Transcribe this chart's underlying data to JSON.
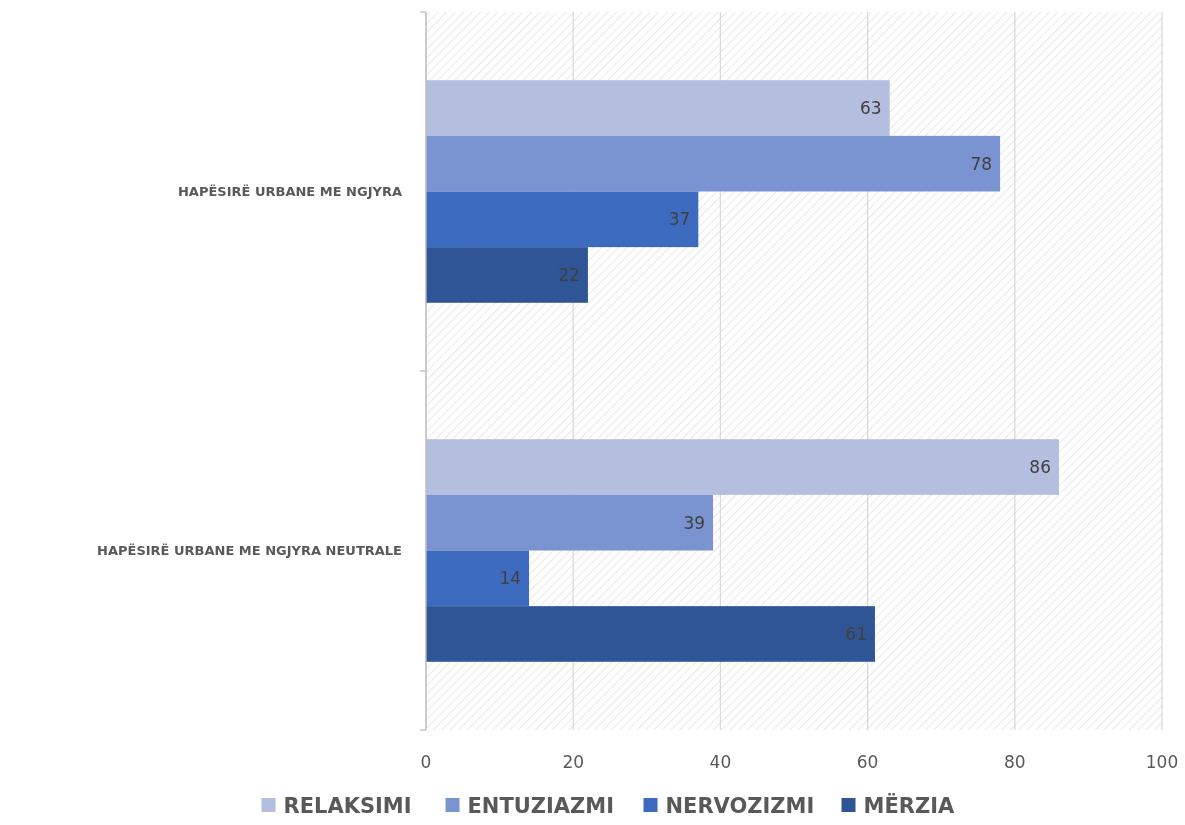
{
  "chart_data": {
    "type": "bar",
    "orientation": "horizontal",
    "categories": [
      "HAPËSIRË URBANE ME NGJYRA",
      "HAPËSIRË URBANE ME NGJYRA NEUTRALE"
    ],
    "series": [
      {
        "name": "RELAKSIMI",
        "color": "#b4bfe0",
        "values": [
          63,
          86
        ]
      },
      {
        "name": "ENTUZIAZMI",
        "color": "#7a93d1",
        "values": [
          78,
          39
        ]
      },
      {
        "name": "NERVOZIZMI",
        "color": "#3d6bbf",
        "values": [
          37,
          14
        ]
      },
      {
        "name": "MËRZIA",
        "color": "#2f5597",
        "values": [
          22,
          61
        ]
      }
    ],
    "xlim": [
      0,
      100
    ],
    "xticks": [
      0,
      20,
      40,
      60,
      80,
      100
    ],
    "grid": "x",
    "legend": "bottom",
    "data_labels": true
  }
}
